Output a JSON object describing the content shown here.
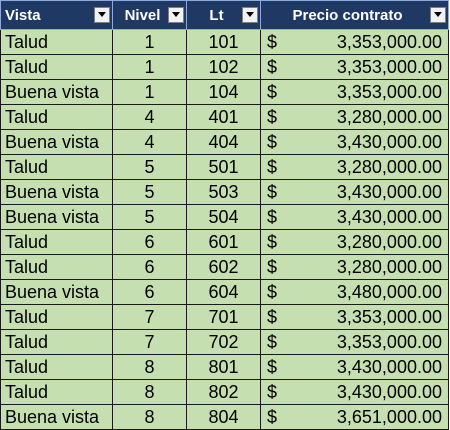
{
  "table": {
    "headers": {
      "vista": "Vista",
      "nivel": "Nivel",
      "lt": "Lt",
      "precio": "Precio contrato"
    },
    "currency_symbol": "$",
    "rows": [
      {
        "vista": "Talud",
        "nivel": "1",
        "lt": "101",
        "precio": "3,353,000.00"
      },
      {
        "vista": "Talud",
        "nivel": "1",
        "lt": "102",
        "precio": "3,353,000.00"
      },
      {
        "vista": "Buena vista",
        "nivel": "1",
        "lt": "104",
        "precio": "3,353,000.00"
      },
      {
        "vista": "Talud",
        "nivel": "4",
        "lt": "401",
        "precio": "3,280,000.00"
      },
      {
        "vista": "Buena vista",
        "nivel": "4",
        "lt": "404",
        "precio": "3,430,000.00"
      },
      {
        "vista": "Talud",
        "nivel": "5",
        "lt": "501",
        "precio": "3,280,000.00"
      },
      {
        "vista": "Buena vista",
        "nivel": "5",
        "lt": "503",
        "precio": "3,430,000.00"
      },
      {
        "vista": "Buena vista",
        "nivel": "5",
        "lt": "504",
        "precio": "3,430,000.00"
      },
      {
        "vista": "Talud",
        "nivel": "6",
        "lt": "601",
        "precio": "3,280,000.00"
      },
      {
        "vista": "Talud",
        "nivel": "6",
        "lt": "602",
        "precio": "3,280,000.00"
      },
      {
        "vista": "Buena vista",
        "nivel": "6",
        "lt": "604",
        "precio": "3,480,000.00"
      },
      {
        "vista": "Talud",
        "nivel": "7",
        "lt": "701",
        "precio": "3,353,000.00"
      },
      {
        "vista": "Talud",
        "nivel": "7",
        "lt": "702",
        "precio": "3,353,000.00"
      },
      {
        "vista": "Talud",
        "nivel": "8",
        "lt": "801",
        "precio": "3,430,000.00"
      },
      {
        "vista": "Talud",
        "nivel": "8",
        "lt": "802",
        "precio": "3,430,000.00"
      },
      {
        "vista": "Buena vista",
        "nivel": "8",
        "lt": "804",
        "precio": "3,651,000.00"
      }
    ]
  },
  "icons": {
    "filter": "dropdown-arrow-icon"
  },
  "colors": {
    "header_bg": "#1f3864",
    "header_text": "#ffffff",
    "cell_bg": "#c6dfb0",
    "border": "#1a1a1a"
  }
}
